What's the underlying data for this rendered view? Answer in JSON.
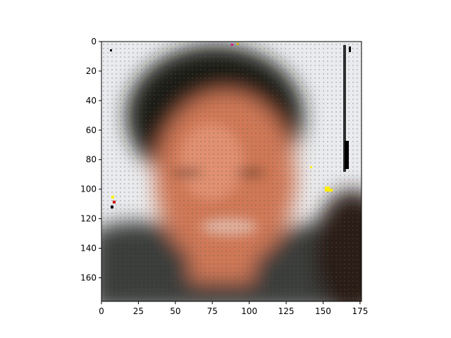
{
  "figure": {
    "type": "image-plot",
    "subject": "blurred pixelated portrait of a smiling man",
    "x_axis": {
      "range": [
        0,
        176
      ],
      "ticks": [
        "0",
        "25",
        "50",
        "75",
        "100",
        "125",
        "150",
        "175"
      ],
      "tick_values": [
        0,
        25,
        50,
        75,
        100,
        125,
        150,
        175
      ]
    },
    "y_axis": {
      "range": [
        0,
        176
      ],
      "ticks": [
        "0",
        "20",
        "40",
        "60",
        "80",
        "100",
        "120",
        "140",
        "160"
      ],
      "tick_values": [
        0,
        20,
        40,
        60,
        80,
        100,
        120,
        140,
        160
      ]
    },
    "colors": {
      "background": "#e9ebee",
      "hair": "#1e1a17",
      "skin": "#d07856",
      "skin_light": "#e89a7c",
      "shirt": "#3a3d3a",
      "dark_right": "#2a1a16",
      "frame": "#000000"
    }
  }
}
